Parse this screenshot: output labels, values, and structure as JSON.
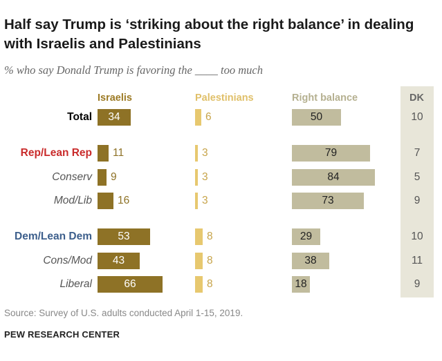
{
  "header": {
    "title": "Half say Trump is ‘striking about the right balance’ in dealing with Israelis and Palestinians",
    "subtitle": "% who say Donald Trump is favoring the ____ too much"
  },
  "chart_data": {
    "type": "bar",
    "columns": [
      "Israelis",
      "Palestinians",
      "Right balance",
      "DK"
    ],
    "categories": [
      "Total",
      "Rep/Lean Rep",
      "Conserv",
      "Mod/Lib",
      "Dem/Lean Dem",
      "Cons/Mod",
      "Liberal"
    ],
    "series": [
      {
        "name": "Israelis",
        "values": [
          34,
          11,
          9,
          16,
          53,
          43,
          66
        ]
      },
      {
        "name": "Palestinians",
        "values": [
          6,
          3,
          3,
          3,
          8,
          8,
          8
        ]
      },
      {
        "name": "Right balance",
        "values": [
          50,
          79,
          84,
          73,
          29,
          38,
          18
        ]
      },
      {
        "name": "DK",
        "values": [
          10,
          7,
          5,
          9,
          10,
          11,
          9
        ]
      }
    ],
    "colors": {
      "Israelis": "#8e7226",
      "Palestinians": "#e7c86f",
      "Right balance": "#c1bc9e",
      "DK_band": "#e8e6d9"
    }
  },
  "footer": {
    "source": "Source: Survey of U.S. adults conducted April 1-15, 2019.",
    "brand": "PEW RESEARCH CENTER"
  }
}
